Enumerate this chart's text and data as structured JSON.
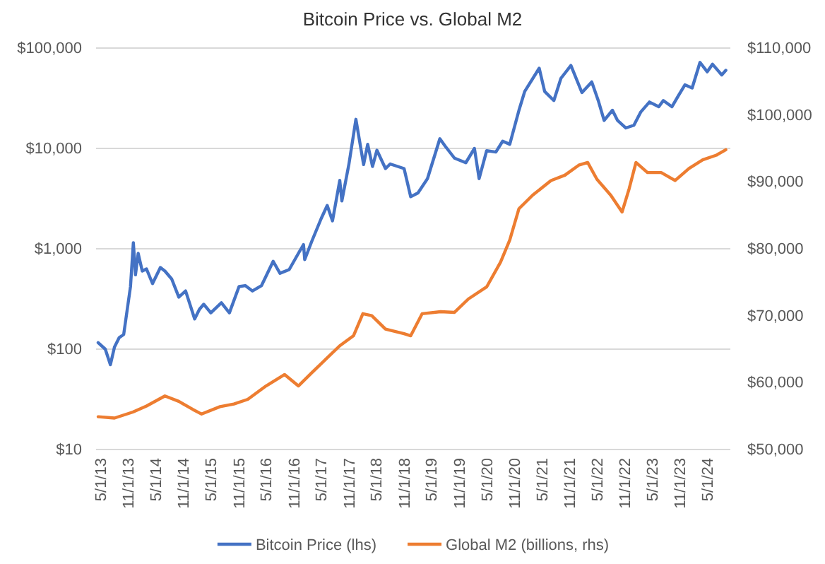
{
  "chart_data": {
    "type": "line",
    "title": "Bitcoin Price vs. Global M2",
    "log": "y",
    "grid": "y",
    "legend": "bottom",
    "line_style": "solid",
    "marker": "none",
    "xlim": [
      "2013-04-01",
      "2024-10-01"
    ],
    "xticks": [
      {
        "value": "2013-05-01",
        "label": "5/1/13"
      },
      {
        "value": "2013-11-01",
        "label": "11/1/13"
      },
      {
        "value": "2014-05-01",
        "label": "5/1/14"
      },
      {
        "value": "2014-11-01",
        "label": "11/1/14"
      },
      {
        "value": "2015-05-01",
        "label": "5/1/15"
      },
      {
        "value": "2015-11-01",
        "label": "11/1/15"
      },
      {
        "value": "2016-05-01",
        "label": "5/1/16"
      },
      {
        "value": "2016-11-01",
        "label": "11/1/16"
      },
      {
        "value": "2017-05-01",
        "label": "5/1/17"
      },
      {
        "value": "2017-11-01",
        "label": "11/1/17"
      },
      {
        "value": "2018-05-01",
        "label": "5/1/18"
      },
      {
        "value": "2018-11-01",
        "label": "11/1/18"
      },
      {
        "value": "2019-05-01",
        "label": "5/1/19"
      },
      {
        "value": "2019-11-01",
        "label": "11/1/19"
      },
      {
        "value": "2020-05-01",
        "label": "5/1/20"
      },
      {
        "value": "2020-11-01",
        "label": "11/1/20"
      },
      {
        "value": "2021-05-01",
        "label": "5/1/21"
      },
      {
        "value": "2021-11-01",
        "label": "11/1/21"
      },
      {
        "value": "2022-05-01",
        "label": "5/1/22"
      },
      {
        "value": "2022-11-01",
        "label": "11/1/22"
      },
      {
        "value": "2023-05-01",
        "label": "5/1/23"
      },
      {
        "value": "2023-11-01",
        "label": "11/1/23"
      },
      {
        "value": "2024-05-01",
        "label": "5/1/24"
      }
    ],
    "ylim": [
      10,
      100000
    ],
    "yticks": [
      {
        "value": 10,
        "label": "$10"
      },
      {
        "value": 100,
        "label": "$100"
      },
      {
        "value": 1000,
        "label": "$1,000"
      },
      {
        "value": 10000,
        "label": "$10,000"
      },
      {
        "value": 100000,
        "label": "$100,000"
      }
    ],
    "y2lim": [
      50000,
      110000
    ],
    "y2ticks": [
      {
        "value": 50000,
        "label": "$50,000"
      },
      {
        "value": 60000,
        "label": "$60,000"
      },
      {
        "value": 70000,
        "label": "$70,000"
      },
      {
        "value": 80000,
        "label": "$80,000"
      },
      {
        "value": 90000,
        "label": "$90,000"
      },
      {
        "value": 100000,
        "label": "$100,000"
      },
      {
        "value": 110000,
        "label": "$110,000"
      }
    ],
    "series": [
      {
        "name": "Bitcoin Price (lhs)",
        "color": "#4472c4",
        "x": [
          "2013-04-15",
          "2013-06-01",
          "2013-07-05",
          "2013-08-01",
          "2013-09-01",
          "2013-10-01",
          "2013-11-15",
          "2013-12-04",
          "2013-12-18",
          "2014-01-05",
          "2014-02-01",
          "2014-03-01",
          "2014-04-10",
          "2014-06-01",
          "2014-07-01",
          "2014-08-15",
          "2014-10-01",
          "2014-11-15",
          "2015-01-14",
          "2015-02-15",
          "2015-03-15",
          "2015-05-01",
          "2015-07-10",
          "2015-09-01",
          "2015-11-04",
          "2015-12-15",
          "2016-02-01",
          "2016-04-01",
          "2016-06-17",
          "2016-08-01",
          "2016-10-01",
          "2016-12-01",
          "2017-01-04",
          "2017-01-12",
          "2017-03-01",
          "2017-05-01",
          "2017-06-10",
          "2017-07-15",
          "2017-09-01",
          "2017-09-15",
          "2017-11-01",
          "2017-12-17",
          "2018-02-06",
          "2018-03-05",
          "2018-04-06",
          "2018-05-05",
          "2018-07-01",
          "2018-08-01",
          "2018-11-01",
          "2018-12-15",
          "2019-02-01",
          "2019-04-05",
          "2019-06-26",
          "2019-08-01",
          "2019-10-01",
          "2019-12-15",
          "2020-02-10",
          "2020-03-12",
          "2020-05-01",
          "2020-07-01",
          "2020-08-15",
          "2020-10-01",
          "2020-12-01",
          "2021-01-08",
          "2021-04-14",
          "2021-05-20",
          "2021-07-20",
          "2021-09-05",
          "2021-11-10",
          "2022-01-22",
          "2022-03-28",
          "2022-05-10",
          "2022-06-18",
          "2022-08-12",
          "2022-09-15",
          "2022-11-09",
          "2023-01-01",
          "2023-02-15",
          "2023-04-14",
          "2023-06-15",
          "2023-07-15",
          "2023-09-10",
          "2023-10-25",
          "2023-12-05",
          "2024-01-22",
          "2024-03-14",
          "2024-05-01",
          "2024-06-05",
          "2024-08-05",
          "2024-09-01"
        ],
        "values": [
          116,
          100,
          70,
          105,
          130,
          140,
          420,
          1150,
          550,
          900,
          600,
          630,
          450,
          650,
          600,
          500,
          330,
          380,
          200,
          250,
          280,
          230,
          290,
          230,
          420,
          430,
          380,
          430,
          750,
          570,
          620,
          900,
          1100,
          780,
          1200,
          2000,
          2700,
          1900,
          4800,
          3000,
          7000,
          19500,
          6900,
          11000,
          6600,
          9600,
          6300,
          7000,
          6300,
          3300,
          3600,
          5000,
          12500,
          10500,
          8000,
          7200,
          10000,
          5000,
          9500,
          9200,
          11800,
          11000,
          24000,
          37000,
          63000,
          37000,
          30000,
          50000,
          67000,
          36000,
          46000,
          30000,
          19000,
          24000,
          19000,
          16000,
          17000,
          23000,
          29000,
          26000,
          30000,
          26000,
          34000,
          43000,
          40000,
          72000,
          58000,
          69000,
          54000,
          60000
        ]
      },
      {
        "name": "Global M2 (billions, rhs)",
        "color": "#ed7d31",
        "axis": "y2",
        "x": [
          "2013-04-15",
          "2013-08-01",
          "2013-12-01",
          "2014-03-01",
          "2014-07-01",
          "2014-10-01",
          "2015-01-01",
          "2015-03-01",
          "2015-07-01",
          "2015-10-01",
          "2016-01-01",
          "2016-05-01",
          "2016-09-01",
          "2016-12-01",
          "2017-03-01",
          "2017-06-01",
          "2017-09-01",
          "2017-12-01",
          "2018-02-01",
          "2018-04-01",
          "2018-07-01",
          "2018-11-01",
          "2018-12-15",
          "2019-03-01",
          "2019-07-01",
          "2019-10-01",
          "2020-01-01",
          "2020-05-01",
          "2020-08-01",
          "2020-10-01",
          "2020-12-01",
          "2021-03-01",
          "2021-07-01",
          "2021-10-01",
          "2022-01-01",
          "2022-03-01",
          "2022-05-01",
          "2022-08-01",
          "2022-10-15",
          "2022-12-01",
          "2023-01-15",
          "2023-04-01",
          "2023-07-01",
          "2023-10-01",
          "2024-01-01",
          "2024-04-01",
          "2024-07-01",
          "2024-09-01"
        ],
        "values": [
          54900,
          54700,
          55600,
          56500,
          58000,
          57200,
          56000,
          55300,
          56400,
          56800,
          57500,
          59500,
          61200,
          59500,
          61500,
          63500,
          65500,
          67000,
          70300,
          70000,
          68000,
          67300,
          67000,
          70300,
          70600,
          70500,
          72500,
          74300,
          78000,
          81300,
          86000,
          88000,
          90200,
          91000,
          92500,
          92900,
          90400,
          88000,
          85500,
          89000,
          92900,
          91400,
          91400,
          90200,
          92000,
          93300,
          94000,
          94800
        ]
      }
    ]
  }
}
